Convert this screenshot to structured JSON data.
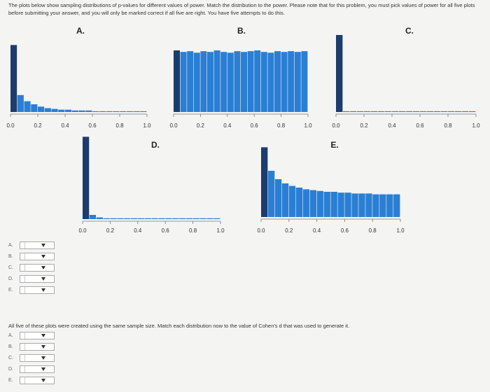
{
  "instructions": "The plots below show sampling distributions of p-values for different values of power. Match the distribution to the power. Please note that for this problem, you must pick values of power for all five plots before submitting your answer, and you will only be marked correct if all five are right. You have five attempts to do this.",
  "chart_data": [
    {
      "type": "histogram",
      "title": "A.",
      "bins": [
        0,
        0.05,
        0.1,
        0.15,
        0.2,
        0.25,
        0.3,
        0.35,
        0.4,
        0.45,
        0.5,
        0.55,
        0.6,
        0.65,
        0.7,
        0.75,
        0.8,
        0.85,
        0.9,
        0.95,
        1
      ],
      "values": [
        87,
        22,
        14,
        10,
        7,
        5,
        4,
        3,
        3,
        2,
        2,
        2,
        1,
        1,
        1,
        1,
        1,
        1,
        1,
        1
      ],
      "color": "#2a7fd4",
      "first_bin_color": "#1d3c6e",
      "xlim": [
        0,
        1
      ],
      "ylim": [
        0,
        100
      ],
      "xticks": [
        {
          "value": 0,
          "label": "0.0"
        },
        0.2,
        0.4,
        0.6,
        0.8,
        {
          "value": 1,
          "label": "1.0"
        }
      ]
    },
    {
      "type": "histogram",
      "title": "B.",
      "bins": [
        0,
        0.05,
        0.1,
        0.15,
        0.2,
        0.25,
        0.3,
        0.35,
        0.4,
        0.45,
        0.5,
        0.55,
        0.6,
        0.65,
        0.7,
        0.75,
        0.8,
        0.85,
        0.9,
        0.95,
        1
      ],
      "values": [
        80,
        78,
        79,
        77,
        79,
        78,
        80,
        78,
        77,
        79,
        78,
        79,
        80,
        78,
        77,
        79,
        78,
        79,
        78,
        79
      ],
      "color": "#2a7fd4",
      "first_bin_color": "#1d3c6e",
      "xlim": [
        0,
        1
      ],
      "ylim": [
        0,
        100
      ],
      "xticks": [
        {
          "value": 0,
          "label": "0.0"
        },
        0.2,
        0.4,
        0.6,
        0.8,
        {
          "value": 1,
          "label": "1.0"
        }
      ]
    },
    {
      "type": "histogram",
      "title": "C.",
      "bins": [
        0,
        0.05,
        0.1,
        0.15,
        0.2,
        0.25,
        0.3,
        0.35,
        0.4,
        0.45,
        0.5,
        0.55,
        0.6,
        0.65,
        0.7,
        0.75,
        0.8,
        0.85,
        0.9,
        0.95,
        1
      ],
      "values": [
        100,
        1,
        1,
        1,
        1,
        1,
        1,
        1,
        1,
        1,
        1,
        1,
        1,
        1,
        1,
        1,
        1,
        1,
        1,
        1
      ],
      "color": "#2a7fd4",
      "first_bin_color": "#1d3c6e",
      "xlim": [
        0,
        1
      ],
      "ylim": [
        0,
        100
      ],
      "xticks": [
        {
          "value": 0,
          "label": "0.0"
        },
        0.2,
        0.4,
        0.6,
        0.8,
        {
          "value": 1,
          "label": "1.0"
        }
      ]
    },
    {
      "type": "histogram",
      "title": "D.",
      "bins": [
        0,
        0.05,
        0.1,
        0.15,
        0.2,
        0.25,
        0.3,
        0.35,
        0.4,
        0.45,
        0.5,
        0.55,
        0.6,
        0.65,
        0.7,
        0.75,
        0.8,
        0.85,
        0.9,
        0.95,
        1
      ],
      "values": [
        98,
        5,
        2,
        1,
        1,
        1,
        1,
        1,
        1,
        1,
        1,
        1,
        1,
        1,
        1,
        1,
        1,
        1,
        1,
        1
      ],
      "color": "#2a7fd4",
      "first_bin_color": "#1d3c6e",
      "xlim": [
        0,
        1
      ],
      "ylim": [
        0,
        100
      ],
      "xticks": [
        {
          "value": 0,
          "label": "0.0"
        },
        0.2,
        0.4,
        0.6,
        0.8,
        {
          "value": 1,
          "label": "1.0"
        }
      ]
    },
    {
      "type": "histogram",
      "title": "E.",
      "bins": [
        0,
        0.05,
        0.1,
        0.15,
        0.2,
        0.25,
        0.3,
        0.35,
        0.4,
        0.45,
        0.5,
        0.55,
        0.6,
        0.65,
        0.7,
        0.75,
        0.8,
        0.85,
        0.9,
        0.95,
        1
      ],
      "values": [
        83,
        55,
        45,
        40,
        37,
        35,
        33,
        32,
        31,
        30,
        30,
        29,
        29,
        28,
        28,
        28,
        27,
        27,
        27,
        27
      ],
      "color": "#2a7fd4",
      "first_bin_color": "#1d3c6e",
      "xlim": [
        0,
        1
      ],
      "ylim": [
        0,
        100
      ],
      "xticks": [
        {
          "value": 0,
          "label": "0.0"
        },
        0.2,
        0.4,
        0.6,
        0.8,
        {
          "value": 1,
          "label": "1.0"
        }
      ]
    }
  ],
  "dropdowns_1": {
    "labels": [
      "A.",
      "B.",
      "C.",
      "D.",
      "E."
    ]
  },
  "question_2": "All five of these plots were created using the same sample size. Match each distribution now to the value of Cohen's d that was used to generate it.",
  "dropdowns_2": {
    "labels": [
      "A.",
      "B.",
      "C.",
      "D.",
      "E."
    ]
  }
}
